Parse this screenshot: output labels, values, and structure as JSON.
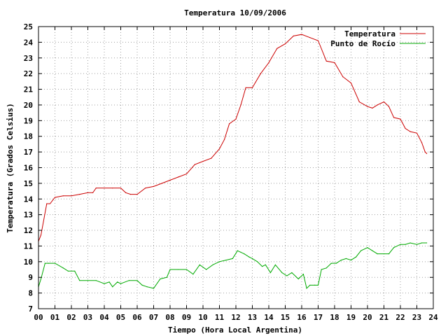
{
  "chart_data": {
    "type": "line",
    "title": "Temperatura 10/09/2006",
    "xlabel": "Tiempo (Hora Local Argentina)",
    "ylabel": "Temperatura (Grados Celsius)",
    "xlim": [
      0,
      24
    ],
    "ylim": [
      7,
      25
    ],
    "xticks": [
      "00",
      "01",
      "02",
      "03",
      "04",
      "05",
      "06",
      "07",
      "08",
      "09",
      "10",
      "11",
      "12",
      "13",
      "14",
      "15",
      "16",
      "17",
      "18",
      "19",
      "20",
      "21",
      "22",
      "23",
      "24"
    ],
    "yticks": [
      7,
      8,
      9,
      10,
      11,
      12,
      13,
      14,
      15,
      16,
      17,
      18,
      19,
      20,
      21,
      22,
      23,
      24,
      25
    ],
    "grid": true,
    "legend_position": "top-right",
    "series": [
      {
        "name": "Temperatura",
        "color": "#cc0000",
        "x": [
          0,
          0.15,
          0.5,
          0.7,
          1.0,
          1.5,
          2.0,
          2.5,
          3.0,
          3.3,
          3.5,
          4.0,
          4.5,
          5.0,
          5.3,
          5.6,
          6.0,
          6.5,
          7.0,
          7.5,
          8.0,
          8.5,
          9.0,
          9.5,
          10.0,
          10.5,
          11.0,
          11.3,
          11.6,
          12.0,
          12.3,
          12.6,
          13.0,
          13.5,
          14.0,
          14.5,
          15.0,
          15.5,
          16.0,
          16.5,
          17.0,
          17.5,
          18.0,
          18.5,
          19.0,
          19.5,
          20.0,
          20.3,
          20.6,
          21.0,
          21.3,
          21.6,
          22.0,
          22.3,
          22.6,
          23.0,
          23.3,
          23.5,
          23.6
        ],
        "y": [
          11.3,
          11.7,
          13.7,
          13.7,
          14.1,
          14.2,
          14.2,
          14.3,
          14.4,
          14.4,
          14.7,
          14.7,
          14.7,
          14.7,
          14.4,
          14.3,
          14.3,
          14.7,
          14.8,
          15.0,
          15.2,
          15.4,
          15.6,
          16.2,
          16.4,
          16.6,
          17.2,
          17.8,
          18.8,
          19.1,
          20.0,
          21.1,
          21.1,
          22.0,
          22.7,
          23.6,
          23.9,
          24.4,
          24.5,
          24.3,
          24.1,
          22.8,
          22.7,
          21.8,
          21.4,
          20.2,
          19.9,
          19.8,
          20.0,
          20.2,
          19.9,
          19.2,
          19.1,
          18.5,
          18.3,
          18.2,
          17.6,
          17.0,
          16.9
        ]
      },
      {
        "name": "Punto de Rocío",
        "color": "#00aa00",
        "x": [
          0,
          0.15,
          0.4,
          0.6,
          1.0,
          1.5,
          1.8,
          2.2,
          2.5,
          3.0,
          3.5,
          4.0,
          4.3,
          4.5,
          4.8,
          5.0,
          5.5,
          6.0,
          6.3,
          6.6,
          7.0,
          7.4,
          7.8,
          8.0,
          8.5,
          9.0,
          9.4,
          9.8,
          10.2,
          10.6,
          11.0,
          11.4,
          11.8,
          12.1,
          12.3,
          12.5,
          12.8,
          13.0,
          13.3,
          13.6,
          13.8,
          14.1,
          14.4,
          14.8,
          15.1,
          15.4,
          15.8,
          16.1,
          16.3,
          16.5,
          16.8,
          17.0,
          17.2,
          17.5,
          17.8,
          18.1,
          18.4,
          18.7,
          19.0,
          19.3,
          19.6,
          20.0,
          20.3,
          20.6,
          21.0,
          21.3,
          21.6,
          22.0,
          22.3,
          22.6,
          23.0,
          23.3,
          23.6
        ],
        "y": [
          8.4,
          8.9,
          9.9,
          9.9,
          9.9,
          9.6,
          9.4,
          9.4,
          8.8,
          8.8,
          8.8,
          8.6,
          8.7,
          8.4,
          8.7,
          8.6,
          8.8,
          8.8,
          8.5,
          8.4,
          8.3,
          8.9,
          9.0,
          9.5,
          9.5,
          9.5,
          9.2,
          9.8,
          9.5,
          9.8,
          10.0,
          10.1,
          10.2,
          10.7,
          10.6,
          10.5,
          10.3,
          10.2,
          10.0,
          9.7,
          9.8,
          9.3,
          9.8,
          9.3,
          9.1,
          9.3,
          8.9,
          9.2,
          8.3,
          8.5,
          8.5,
          8.5,
          9.5,
          9.6,
          9.9,
          9.9,
          10.1,
          10.2,
          10.1,
          10.3,
          10.7,
          10.9,
          10.7,
          10.5,
          10.5,
          10.5,
          10.9,
          11.1,
          11.1,
          11.2,
          11.1,
          11.2,
          11.2
        ]
      }
    ]
  }
}
